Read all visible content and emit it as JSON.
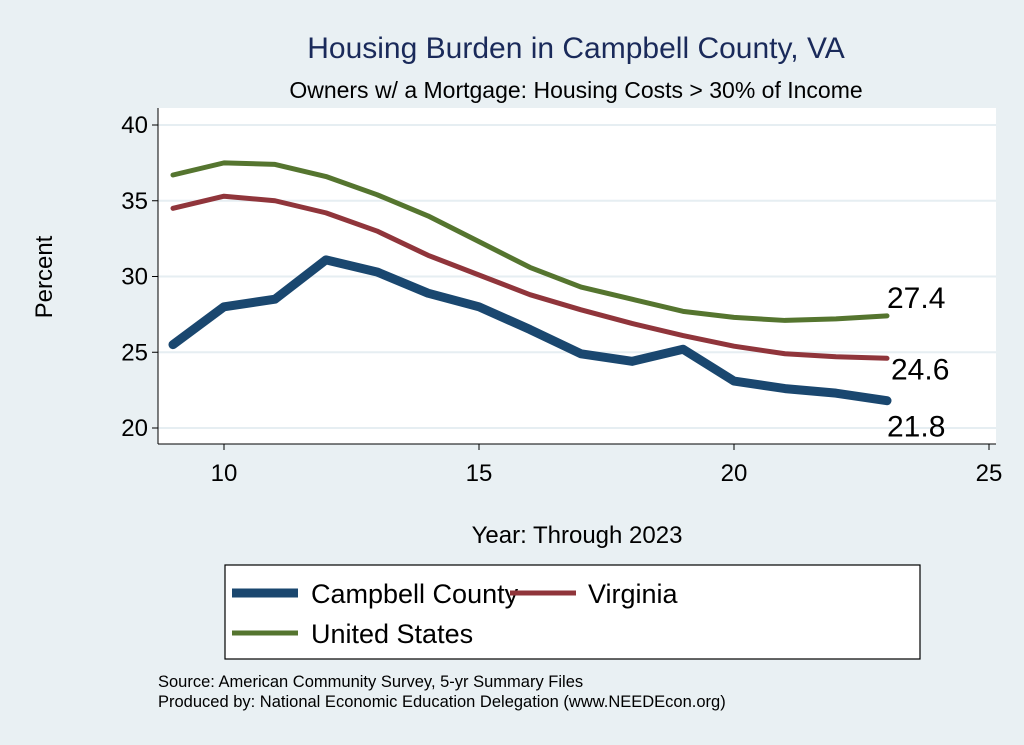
{
  "chart_data": {
    "type": "line",
    "title": "Housing Burden in Campbell County, VA",
    "subtitle": "Owners w/ a Mortgage: Housing Costs > 30% of Income",
    "xlabel": "Year: Through 2023",
    "ylabel": "Percent",
    "xlim": [
      8.7,
      25.2
    ],
    "ylim": [
      19,
      40.5
    ],
    "xticks": [
      10,
      15,
      20,
      25
    ],
    "yticks": [
      20,
      25,
      30,
      35,
      40
    ],
    "grid": true,
    "legend_position": "bottom",
    "x": [
      9,
      10,
      11,
      12,
      13,
      14,
      15,
      16,
      17,
      18,
      19,
      20,
      21,
      22,
      23
    ],
    "series": [
      {
        "name": "Campbell County",
        "color": "#1a476f",
        "values": [
          25.5,
          28.0,
          28.5,
          31.1,
          30.3,
          28.9,
          28.0,
          26.5,
          24.9,
          24.4,
          25.2,
          23.1,
          22.6,
          22.3,
          21.8
        ],
        "end_label": "21.8"
      },
      {
        "name": "Virginia",
        "color": "#90353b",
        "values": [
          34.5,
          35.3,
          35.0,
          34.2,
          33.0,
          31.4,
          30.1,
          28.8,
          27.8,
          26.9,
          26.1,
          25.4,
          24.9,
          24.7,
          24.6
        ],
        "end_label": "24.6"
      },
      {
        "name": "United States",
        "color": "#55752f",
        "values": [
          36.7,
          37.5,
          37.4,
          36.6,
          35.4,
          34.0,
          32.3,
          30.6,
          29.3,
          28.5,
          27.7,
          27.3,
          27.1,
          27.2,
          27.4
        ],
        "end_label": "27.4"
      }
    ]
  },
  "notes": {
    "source": "Source: American Community Survey, 5-yr Summary Files",
    "produced": "Produced by: National Economic Education Delegation (www.NEEDEcon.org)"
  }
}
